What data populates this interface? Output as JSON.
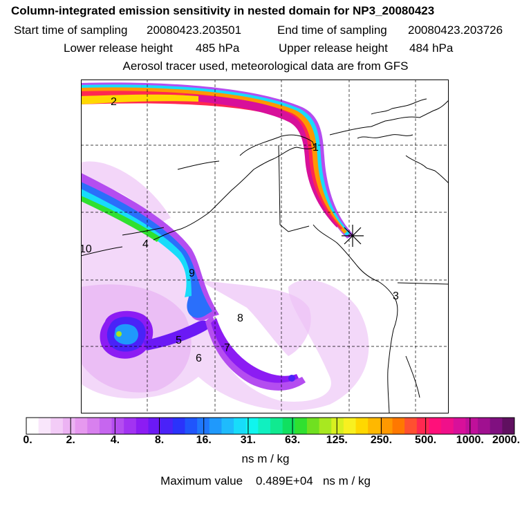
{
  "title": "Column-integrated emission sensitivity in nested domain for NP3_20080423",
  "header": {
    "start_label": "Start time of sampling",
    "start_value": "20080423.203501",
    "end_label": "End time of sampling",
    "end_value": "20080423.203726",
    "lower_label": "Lower release height",
    "lower_value": "485 hPa",
    "upper_label": "Upper release height",
    "upper_value": "484 hPa",
    "tracer_note": "Aerosol tracer used, meteorological data are from GFS"
  },
  "colorbar": {
    "tick_labels": [
      "0.",
      "2.",
      "4.",
      "8.",
      "16.",
      "31.",
      "63.",
      "125.",
      "250.",
      "500.",
      "1000.",
      "2000."
    ],
    "colors": [
      "#ffffff",
      "#f9e6fb",
      "#f3ccf7",
      "#ecb3f3",
      "#e699ef",
      "#d880ee",
      "#c666ef",
      "#b44df0",
      "#a233f2",
      "#8c1cf3",
      "#6b19f5",
      "#4a22f8",
      "#2a33fb",
      "#1f55fc",
      "#1f77fc",
      "#1f99fc",
      "#1fbbfc",
      "#18dcfa",
      "#10f5ee",
      "#10f0c0",
      "#10ea90",
      "#10e060",
      "#30e030",
      "#70e020",
      "#a8e820",
      "#d8f020",
      "#f8f020",
      "#ffd800",
      "#ffb800",
      "#ff9800",
      "#ff7800",
      "#ff5030",
      "#ff2850",
      "#ff107a",
      "#f0108a",
      "#d8109a",
      "#c0109a",
      "#a01090",
      "#801080",
      "#601060"
    ],
    "units": "ns m / kg"
  },
  "max_value": {
    "label": "Maximum value",
    "value": "0.489E+04",
    "units": "ns m / kg"
  },
  "map": {
    "plume_labels": [
      "1",
      "2",
      "3",
      "4",
      "5",
      "6",
      "7",
      "8",
      "9",
      "10"
    ],
    "release_marker": "release-site-star"
  }
}
